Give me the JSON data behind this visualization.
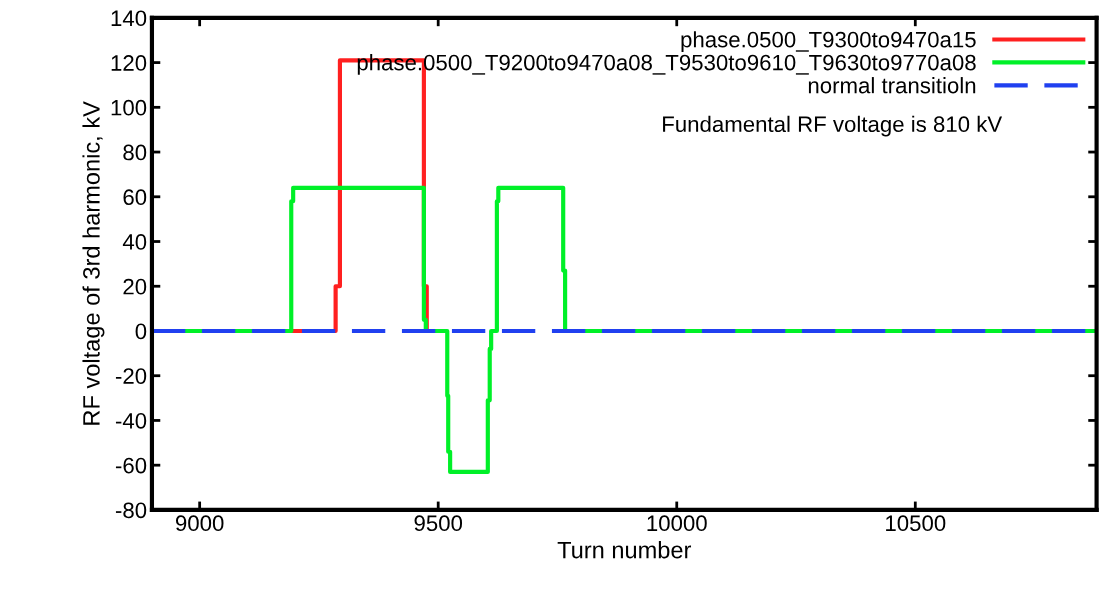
{
  "chart_data": {
    "type": "step",
    "xlabel": "Turn number",
    "ylabel": "RF voltage of 3rd harmonic, kV",
    "xlim": [
      8900,
      10880
    ],
    "xticks": [
      9000,
      9500,
      10000,
      10500
    ],
    "ylim": [
      -80,
      140
    ],
    "yticks": [
      -80,
      -60,
      -40,
      -20,
      0,
      20,
      40,
      60,
      80,
      100,
      120,
      140
    ],
    "grid": false,
    "legend": "top right",
    "annotations": [
      "Fundamental RF voltage is 810 kV"
    ],
    "series": [
      {
        "name": "phase.0500_T9300to9470a15",
        "color": "#ff2020",
        "line_style": "solid",
        "x": [
          8900,
          9285,
          9294,
          9470,
          9476
        ],
        "values": [
          0,
          20,
          121,
          20,
          0
        ]
      },
      {
        "name": "phase.0500_T9200to9470a08_T9530to9610_T9630to9770a08",
        "color": "#00f028",
        "line_style": "solid",
        "x": [
          8900,
          9192,
          9196,
          9470,
          9474,
          9519,
          9521,
          9525,
          9604,
          9608,
          9611,
          9623,
          9626,
          9762,
          9766,
          10880
        ],
        "values": [
          0,
          58,
          64,
          5,
          0,
          -29,
          -54,
          -63,
          -31,
          -8,
          0,
          58,
          64,
          27,
          0,
          0
        ]
      },
      {
        "name": "normal transitioln",
        "color": "#2040f0",
        "line_style": "dashed",
        "x": [
          8900,
          10880
        ],
        "values": [
          0,
          0
        ]
      }
    ]
  }
}
